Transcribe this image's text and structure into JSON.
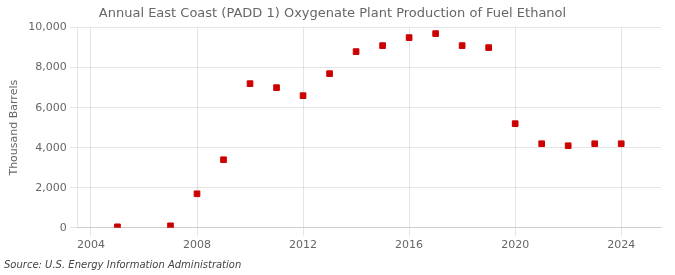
{
  "chart_data": {
    "type": "scatter",
    "title": "Annual East Coast (PADD 1) Oxygenate Plant Production of Fuel Ethanol",
    "ylabel": "Thousand Barrels",
    "annotations": [
      "Source: U.S. Energy Information Administration"
    ],
    "x": [
      2005,
      2007,
      2008,
      2009,
      2010,
      2011,
      2012,
      2013,
      2014,
      2015,
      2016,
      2017,
      2018,
      2019,
      2020,
      2021,
      2022,
      2023,
      2024
    ],
    "values": [
      50,
      100,
      1700,
      3400,
      7200,
      7000,
      6600,
      7700,
      8800,
      9100,
      9500,
      9700,
      9100,
      9000,
      5200,
      4200,
      4100,
      4200,
      4200
    ],
    "color": "#cc0000",
    "marker": "square",
    "xlim": [
      2003.5,
      2025.5
    ],
    "xticks": [
      2004,
      2008,
      2012,
      2016,
      2020,
      2024
    ],
    "ylim": [
      0,
      10000
    ],
    "yticks": [
      0,
      {
        "value": 2000,
        "label": "2,000"
      },
      {
        "value": 4000,
        "label": "4,000"
      },
      {
        "value": 6000,
        "label": "6,000"
      },
      {
        "value": 8000,
        "label": "8,000"
      },
      {
        "value": 10000,
        "label": "10,000"
      }
    ],
    "grid": true
  }
}
